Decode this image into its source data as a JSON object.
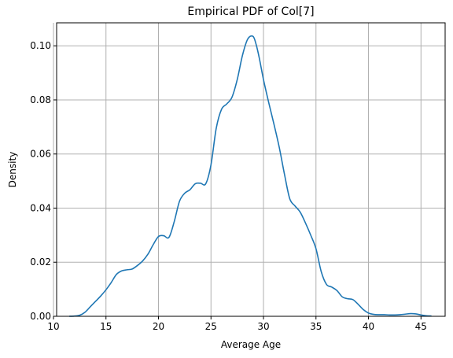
{
  "chart_data": {
    "type": "line",
    "title": "Empirical PDF of Col[7]",
    "xlabel": "Average Age",
    "ylabel": "Density",
    "xlim": [
      10.3,
      47.3
    ],
    "ylim": [
      0,
      0.1085
    ],
    "xticks": [
      10,
      15,
      20,
      25,
      30,
      35,
      40,
      45
    ],
    "yticks": [
      0.0,
      0.02,
      0.04,
      0.06,
      0.08,
      0.1
    ],
    "ytick_labels": [
      "0.00",
      "0.02",
      "0.04",
      "0.06",
      "0.08",
      "0.10"
    ],
    "grid": true,
    "color": "#1f77b4",
    "series": [
      {
        "x": [
          11.5,
          12.0,
          12.5,
          13.0,
          13.5,
          14.0,
          14.5,
          15.0,
          15.5,
          16.0,
          16.5,
          17.0,
          17.5,
          18.0,
          18.5,
          19.0,
          19.5,
          20.0,
          20.5,
          21.0,
          21.5,
          22.0,
          22.5,
          23.0,
          23.5,
          24.0,
          24.5,
          25.0,
          25.5,
          26.0,
          26.5,
          27.0,
          27.5,
          28.0,
          28.5,
          29.0,
          29.3,
          29.6,
          30.0,
          30.5,
          31.0,
          31.5,
          32.0,
          32.5,
          33.0,
          33.5,
          34.0,
          34.5,
          35.0,
          35.5,
          36.0,
          36.5,
          37.0,
          37.5,
          38.0,
          38.5,
          39.0,
          39.5,
          40.0,
          40.5,
          41.0,
          41.5,
          42.0,
          42.5,
          43.0,
          43.5,
          44.0,
          44.5,
          45.0,
          45.5,
          46.0
        ],
        "y": [
          0.0,
          0.0001,
          0.0004,
          0.0015,
          0.0035,
          0.0055,
          0.0075,
          0.0098,
          0.0125,
          0.0155,
          0.0168,
          0.0172,
          0.0175,
          0.0188,
          0.0205,
          0.023,
          0.0265,
          0.0295,
          0.0298,
          0.0292,
          0.035,
          0.0425,
          0.0455,
          0.0468,
          0.049,
          0.0492,
          0.049,
          0.056,
          0.0695,
          0.0765,
          0.0785,
          0.081,
          0.0875,
          0.0965,
          0.1025,
          0.1035,
          0.1005,
          0.0955,
          0.0875,
          0.079,
          0.071,
          0.0625,
          0.0525,
          0.0435,
          0.0408,
          0.0385,
          0.0345,
          0.03,
          0.025,
          0.0165,
          0.0118,
          0.0108,
          0.0095,
          0.0072,
          0.0065,
          0.0062,
          0.0045,
          0.0025,
          0.0012,
          0.0007,
          0.0006,
          0.0006,
          0.0005,
          0.0005,
          0.0006,
          0.0008,
          0.001,
          0.0009,
          0.0005,
          0.0002,
          0.0001
        ]
      }
    ]
  }
}
